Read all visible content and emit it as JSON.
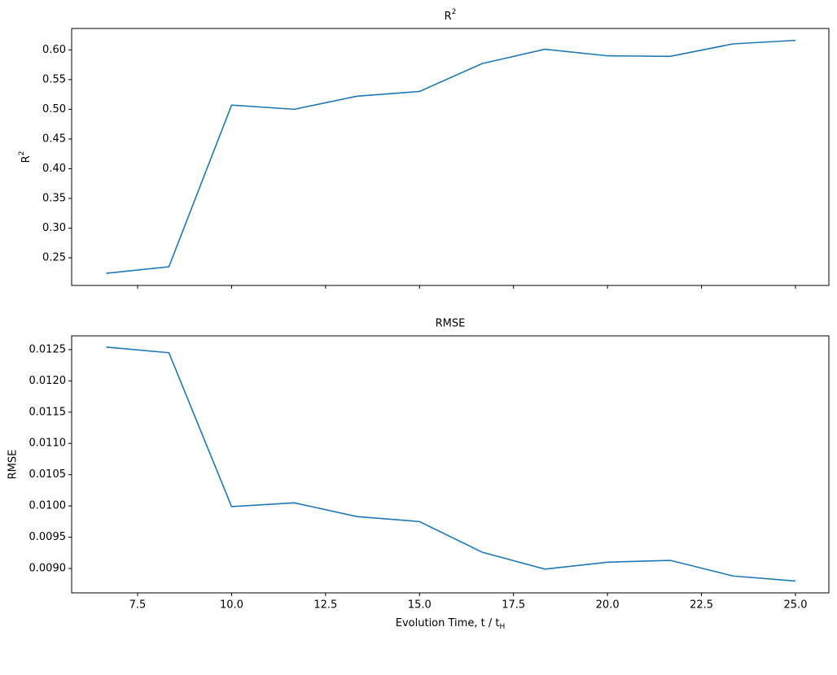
{
  "chart_data": [
    {
      "type": "line",
      "title": {
        "text": "R",
        "superscript": "2"
      },
      "y_label": {
        "text": "R",
        "superscript": "2"
      },
      "x": [
        6.667,
        8.333,
        10.0,
        11.667,
        13.333,
        15.0,
        16.667,
        18.333,
        20.0,
        21.667,
        23.333,
        25.0
      ],
      "series": [
        {
          "color": "#1f77b4",
          "values": [
            0.224,
            0.235,
            0.507,
            0.5,
            0.522,
            0.53,
            0.577,
            0.601,
            0.59,
            0.589,
            0.61,
            0.616
          ]
        }
      ],
      "xlim": [
        5.746,
        25.888
      ],
      "ylim": [
        0.2035,
        0.636
      ],
      "yticks": [
        0.25,
        {
          "value": 0.3,
          "label": "0.30"
        },
        0.35,
        {
          "value": 0.4,
          "label": "0.40"
        },
        0.45,
        {
          "value": 0.5,
          "label": "0.50"
        },
        0.55,
        {
          "value": 0.6,
          "label": "0.60"
        }
      ]
    },
    {
      "type": "line",
      "title": "RMSE",
      "y_label": "RMSE",
      "x_label": {
        "text": "Evolution Time, t / t",
        "subscript": "H"
      },
      "x": [
        6.667,
        8.333,
        10.0,
        11.667,
        13.333,
        15.0,
        16.667,
        18.333,
        20.0,
        21.667,
        23.333,
        25.0
      ],
      "series": [
        {
          "color": "#1f77b4",
          "values": [
            0.01254,
            0.01245,
            0.00999,
            0.01005,
            0.00983,
            0.00975,
            0.00926,
            0.00899,
            0.0091,
            0.00913,
            0.00888,
            0.0088
          ]
        }
      ],
      "xlim": [
        5.746,
        25.888
      ],
      "ylim": [
        0.00861,
        0.01272
      ],
      "xticks": [
        7.5,
        {
          "value": 10,
          "label": "10.0"
        },
        12.5,
        {
          "value": 15,
          "label": "15.0"
        },
        17.5,
        {
          "value": 20,
          "label": "20.0"
        },
        22.5,
        {
          "value": 25,
          "label": "25.0"
        }
      ],
      "yticks": [
        {
          "value": 0.009,
          "label": "0.0090"
        },
        0.0095,
        {
          "value": 0.01,
          "label": "0.0100"
        },
        0.0105,
        {
          "value": 0.011,
          "label": "0.0110"
        },
        0.0115,
        {
          "value": 0.012,
          "label": "0.0120"
        },
        0.0125
      ]
    }
  ]
}
